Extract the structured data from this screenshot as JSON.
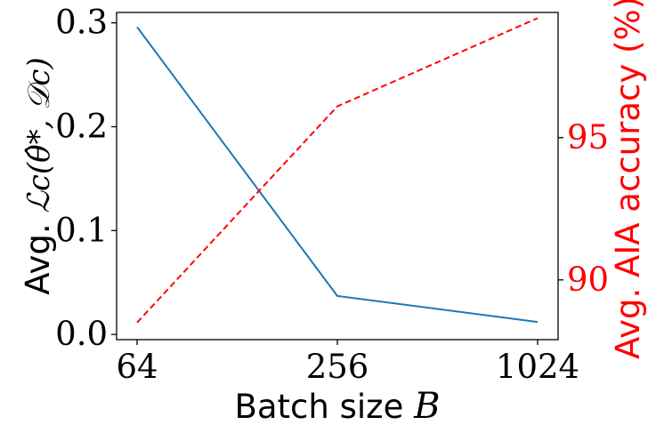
{
  "chart_data": {
    "type": "line",
    "categories": [
      "64",
      "256",
      "1024"
    ],
    "xlabel_text": "Batch size ",
    "xlabel_math": "B",
    "left_axis": {
      "label_text": "Avg. ",
      "label_math": "ℒc(θ̂*, 𝒟c)",
      "ylim": [
        -0.005,
        0.31
      ],
      "ticks": [
        0.0,
        0.1,
        0.2,
        0.3
      ],
      "tick_labels": [
        "0.0",
        "0.1",
        "0.2",
        "0.3"
      ]
    },
    "right_axis": {
      "label": "Avg. AIA accuracy (%)",
      "ylim": [
        87.9,
        99.4
      ],
      "ticks": [
        90,
        95
      ],
      "tick_labels": [
        "90",
        "95"
      ],
      "color": "#ff0000"
    },
    "series": [
      {
        "axis": "left",
        "color": "#1f77b4",
        "style": "solid",
        "values": [
          0.296,
          0.037,
          0.012
        ]
      },
      {
        "axis": "right",
        "color": "#ff0000",
        "style": "dashed",
        "values": [
          88.5,
          96.1,
          99.2
        ]
      }
    ],
    "grid": false,
    "legend": "none"
  }
}
